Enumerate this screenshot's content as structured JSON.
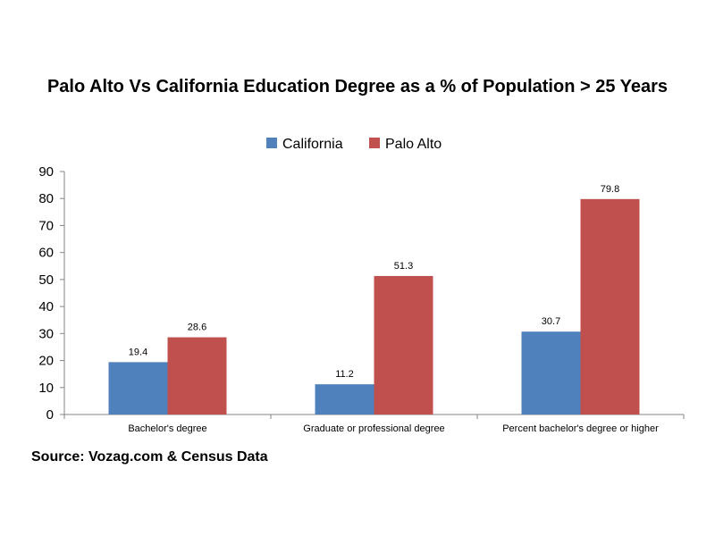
{
  "chart_data": {
    "type": "bar",
    "title": "Palo Alto Vs California Education Degree as a % of Population > 25 Years",
    "categories": [
      "Bachelor's degree",
      "Graduate or professional degree",
      "Percent bachelor's degree or higher"
    ],
    "series": [
      {
        "name": "California",
        "values": [
          19.4,
          11.2,
          30.7
        ],
        "color": "#4f81bd"
      },
      {
        "name": "Palo Alto",
        "values": [
          28.6,
          51.3,
          79.8
        ],
        "color": "#c0504d"
      }
    ],
    "ylim": [
      0,
      90
    ],
    "yticks": [
      "0",
      "10",
      "20",
      "30",
      "40",
      "50",
      "60",
      "70",
      "80",
      "90"
    ],
    "data_labels": [
      [
        "19.4",
        "11.2",
        "30.7"
      ],
      [
        "28.6",
        "51.3",
        "79.8"
      ]
    ],
    "legend_position": "top-center",
    "grid": false
  },
  "source": "Source: Vozag.com & Census Data"
}
